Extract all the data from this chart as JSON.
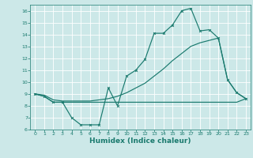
{
  "xlabel": "Humidex (Indice chaleur)",
  "background_color": "#cce8e8",
  "grid_color": "#ffffff",
  "line_color": "#1a7a6e",
  "xlim": [
    -0.5,
    23.5
  ],
  "ylim": [
    6,
    16.5
  ],
  "xticks": [
    0,
    1,
    2,
    3,
    4,
    5,
    6,
    7,
    8,
    9,
    10,
    11,
    12,
    13,
    14,
    15,
    16,
    17,
    18,
    19,
    20,
    21,
    22,
    23
  ],
  "yticks": [
    6,
    7,
    8,
    9,
    10,
    11,
    12,
    13,
    14,
    15,
    16
  ],
  "series1_x": [
    0,
    1,
    2,
    3,
    4,
    5,
    6,
    7,
    8,
    9,
    10,
    11,
    12,
    13,
    14,
    15,
    16,
    17,
    18,
    19,
    20,
    21,
    22,
    23
  ],
  "series1_y": [
    9.0,
    8.8,
    8.3,
    8.3,
    7.0,
    6.4,
    6.4,
    6.4,
    9.5,
    8.0,
    10.5,
    11.0,
    11.9,
    14.1,
    14.1,
    14.8,
    16.0,
    16.2,
    14.3,
    14.4,
    13.7,
    10.2,
    9.1,
    8.6
  ],
  "series2_x": [
    0,
    1,
    2,
    3,
    4,
    5,
    6,
    7,
    8,
    9,
    10,
    11,
    12,
    13,
    14,
    15,
    16,
    17,
    18,
    19,
    20,
    21,
    22,
    23
  ],
  "series2_y": [
    9.0,
    8.8,
    8.3,
    8.3,
    8.3,
    8.3,
    8.3,
    8.3,
    8.3,
    8.3,
    8.3,
    8.3,
    8.3,
    8.3,
    8.3,
    8.3,
    8.3,
    8.3,
    8.3,
    8.3,
    8.3,
    8.3,
    8.3,
    8.6
  ],
  "series3_x": [
    0,
    1,
    2,
    3,
    4,
    5,
    6,
    7,
    8,
    9,
    10,
    11,
    12,
    13,
    14,
    15,
    16,
    17,
    18,
    19,
    20,
    21,
    22,
    23
  ],
  "series3_y": [
    9.0,
    8.9,
    8.5,
    8.4,
    8.4,
    8.4,
    8.4,
    8.5,
    8.6,
    8.8,
    9.1,
    9.5,
    9.9,
    10.5,
    11.1,
    11.8,
    12.4,
    13.0,
    13.3,
    13.5,
    13.7,
    10.2,
    9.1,
    8.6
  ],
  "xlabel_fontsize": 6.5,
  "tick_fontsize": 4.5,
  "linewidth": 0.85,
  "marker_size": 2.0
}
